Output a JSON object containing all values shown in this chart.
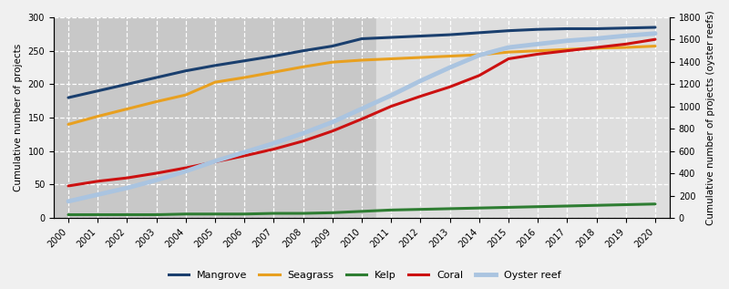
{
  "years": [
    2000,
    2001,
    2002,
    2003,
    2004,
    2005,
    2006,
    2007,
    2008,
    2009,
    2010,
    2011,
    2012,
    2013,
    2014,
    2015,
    2016,
    2017,
    2018,
    2019,
    2020
  ],
  "mangrove": [
    180,
    190,
    200,
    210,
    220,
    228,
    235,
    242,
    250,
    257,
    268,
    270,
    272,
    274,
    277,
    280,
    282,
    283,
    283,
    284,
    285
  ],
  "seagrass": [
    140,
    152,
    163,
    174,
    184,
    203,
    210,
    218,
    226,
    233,
    236,
    238,
    240,
    242,
    244,
    248,
    250,
    252,
    254,
    255,
    257
  ],
  "kelp": [
    5,
    5,
    5,
    5,
    6,
    6,
    6,
    7,
    7,
    8,
    10,
    12,
    13,
    14,
    15,
    16,
    17,
    18,
    19,
    20,
    21
  ],
  "coral": [
    48,
    55,
    60,
    67,
    75,
    84,
    93,
    103,
    115,
    130,
    148,
    167,
    182,
    196,
    213,
    238,
    245,
    250,
    255,
    260,
    267
  ],
  "oyster_reef": [
    150,
    210,
    270,
    340,
    420,
    510,
    590,
    670,
    760,
    860,
    980,
    1100,
    1230,
    1350,
    1460,
    1530,
    1560,
    1590,
    1610,
    1635,
    1655
  ],
  "bg_color_dark": "#c8c8c8",
  "bg_color_light": "#dedede",
  "grid_color": "#ffffff",
  "line_colors": {
    "mangrove": "#1a3f6e",
    "seagrass": "#e8a020",
    "kelp": "#2e7d32",
    "coral": "#cc1111",
    "oyster_reef": "#aac4e0"
  },
  "line_widths": {
    "mangrove": 2.2,
    "seagrass": 2.2,
    "kelp": 2.2,
    "coral": 2.2,
    "oyster_reef": 3.5
  },
  "ylim_left": [
    0,
    300
  ],
  "ylim_right": [
    0,
    1800
  ],
  "yticks_left": [
    0,
    50,
    100,
    150,
    200,
    250,
    300
  ],
  "yticks_right": [
    0,
    200,
    400,
    600,
    800,
    1000,
    1200,
    1400,
    1600,
    1800
  ],
  "ylabel_left": "Cumulative number of projects",
  "ylabel_right": "Cumulative number of projects (oyster reefs)",
  "split_year": 2010,
  "legend_labels": [
    "Mangrove",
    "Seagrass",
    "Kelp",
    "Coral",
    "Oyster reef"
  ],
  "tick_fontsize": 7,
  "label_fontsize": 7.5
}
